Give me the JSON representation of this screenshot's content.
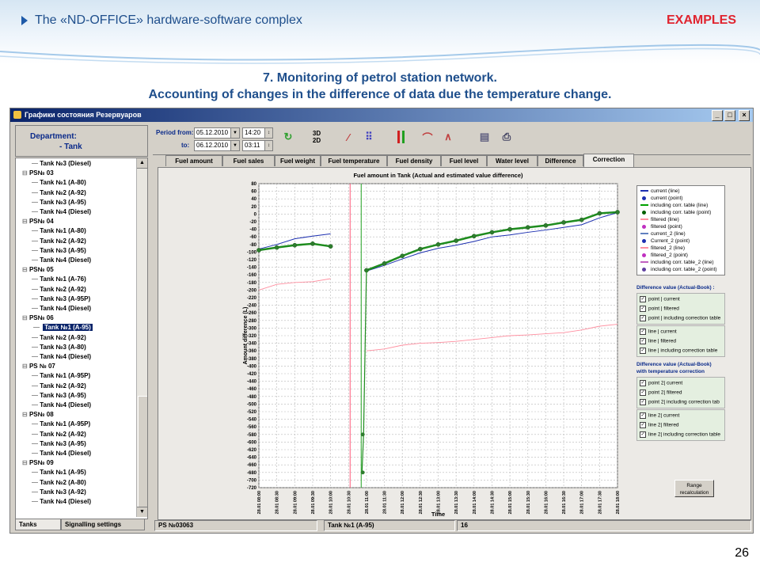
{
  "header": {
    "title": "The «ND-OFFICE» hardware-software complex",
    "examples": "EXAMPLES",
    "slide_title_1": "7. Monitoring of petrol station network.",
    "slide_title_2": "Accounting of changes in the difference of data due the temperature change.",
    "page_number": "26",
    "accent": "#e0242f",
    "brand": "#1f4f8c"
  },
  "window": {
    "title": "Графики состояния Резервуаров",
    "buttons": [
      "_",
      "□",
      "×"
    ]
  },
  "department": {
    "label": "Department:",
    "tank": "- Tank"
  },
  "tree": [
    {
      "type": "tank",
      "label": "Tank №3 (Diesel)"
    },
    {
      "type": "ps",
      "label": "PS№ 03"
    },
    {
      "type": "tank",
      "label": "Tank №1 (A-80)"
    },
    {
      "type": "tank",
      "label": "Tank №2 (A-92)"
    },
    {
      "type": "tank",
      "label": "Tank №3 (A-95)"
    },
    {
      "type": "tank",
      "label": "Tank №4 (Diesel)"
    },
    {
      "type": "ps",
      "label": "PS№ 04"
    },
    {
      "type": "tank",
      "label": "Tank №1 (A-80)"
    },
    {
      "type": "tank",
      "label": "Tank №2 (A-92)"
    },
    {
      "type": "tank",
      "label": "Tank №3 (A-95)"
    },
    {
      "type": "tank",
      "label": "Tank №4 (Diesel)"
    },
    {
      "type": "ps",
      "label": "PS№ 05"
    },
    {
      "type": "tank",
      "label": "Tank №1 (A-76)"
    },
    {
      "type": "tank",
      "label": "Tank №2 (A-92)"
    },
    {
      "type": "tank",
      "label": "Tank №3 (A-95P)"
    },
    {
      "type": "tank",
      "label": "Tank №4 (Diesel)"
    },
    {
      "type": "ps",
      "label": "PS№ 06"
    },
    {
      "type": "tank",
      "label": "Tank №1 (A-95)",
      "selected": true
    },
    {
      "type": "tank",
      "label": "Tank №2 (A-92)"
    },
    {
      "type": "tank",
      "label": "Tank №3 (A-80)"
    },
    {
      "type": "tank",
      "label": "Tank №4 (Diesel)"
    },
    {
      "type": "ps",
      "label": "PS № 07"
    },
    {
      "type": "tank",
      "label": "Tank №1 (A-95P)"
    },
    {
      "type": "tank",
      "label": "Tank №2 (A-92)"
    },
    {
      "type": "tank",
      "label": "Tank №3 (A-95)"
    },
    {
      "type": "tank",
      "label": "Tank №4 (Diesel)"
    },
    {
      "type": "ps",
      "label": "PS№ 08"
    },
    {
      "type": "tank",
      "label": "Tank №1 (A-95P)"
    },
    {
      "type": "tank",
      "label": "Tank №2 (A-92)"
    },
    {
      "type": "tank",
      "label": "Tank №3 (A-95)"
    },
    {
      "type": "tank",
      "label": "Tank №4 (Diesel)"
    },
    {
      "type": "ps",
      "label": "PS№ 09"
    },
    {
      "type": "tank",
      "label": "Tank №1 (A-95)"
    },
    {
      "type": "tank",
      "label": "Tank №2 (A-80)"
    },
    {
      "type": "tank",
      "label": "Tank №3 (A-92)"
    },
    {
      "type": "tank",
      "label": "Tank №4 (Diesel)"
    }
  ],
  "left_tabs": {
    "tanks": "Tanks",
    "signalling": "Signalling settings"
  },
  "toolbar": {
    "period_from_label": "Period from:",
    "period_from_date": "05.12.2010",
    "period_from_time": "14:20",
    "to_label": "to:",
    "to_date": "06.12.2010",
    "to_time": "03:11",
    "toggle_3d": "3D/2D"
  },
  "tabs": [
    "Fuel amount",
    "Fuel sales",
    "Fuel weight",
    "Fuel temperature",
    "Fuel density",
    "Fuel level",
    "Water level",
    "Difference",
    "Correction"
  ],
  "active_tab": "Correction",
  "legend": [
    {
      "label": "current (line)",
      "color": "#1c2fb0",
      "kind": "line"
    },
    {
      "label": "current (point)",
      "color": "#1c2fb0",
      "kind": "point"
    },
    {
      "label": "including corr. table (line)",
      "color": "#00a000",
      "kind": "line"
    },
    {
      "label": "including corr. table (point)",
      "color": "#006000",
      "kind": "point"
    },
    {
      "label": "filtered (line)",
      "color": "#ff8fa0",
      "kind": "line"
    },
    {
      "label": "filtered (point)",
      "color": "#c030c0",
      "kind": "point"
    },
    {
      "label": "current_2 (line)",
      "color": "#6080c0",
      "kind": "line"
    },
    {
      "label": "Current_2 (point)",
      "color": "#1c2fb0",
      "kind": "point"
    },
    {
      "label": "filtered_2 (line)",
      "color": "#ff8fa0",
      "kind": "line"
    },
    {
      "label": "filtered_2 (point)",
      "color": "#c030c0",
      "kind": "point"
    },
    {
      "label": "including corr. table_2 (line)",
      "color": "#c060c0",
      "kind": "line"
    },
    {
      "label": "including corr. table_2 (point)",
      "color": "#6040a0",
      "kind": "point"
    }
  ],
  "diff_panel": {
    "title_1": "Difference value (Actual-Book) :",
    "group_1a": [
      "point | current",
      "point | filtered",
      "point | including correction table"
    ],
    "group_1b": [
      "line | current",
      "line | filtered",
      "line | including correction table"
    ],
    "title_2a": "Difference value (Actual-Book)",
    "title_2b": "with temperature correction",
    "group_2a": [
      "point 2| current",
      "point 2| filtered",
      "point 2| including correction tab"
    ],
    "group_2b": [
      "line 2| current",
      "line 2| filtered",
      "line 2| including correction table"
    ],
    "range_button_1": "Range",
    "range_button_2": "recalculation"
  },
  "status": {
    "ps": "PS №03063",
    "tank": "Tank №1 (A-95)",
    "value": "16"
  },
  "chart_data": {
    "type": "line",
    "title": "Fuel amount in Tank (Actual and estimated value difference)",
    "xlabel": "Time",
    "ylabel": "Amount difference (L)",
    "ylim": [
      -720,
      80
    ],
    "yticks": [
      80,
      60,
      40,
      20,
      0,
      -20,
      -40,
      -60,
      -80,
      -100,
      -120,
      -140,
      -160,
      -180,
      -200,
      -220,
      -240,
      -260,
      -280,
      -300,
      -320,
      -340,
      -360,
      -380,
      -400,
      -420,
      -440,
      -460,
      -480,
      -500,
      -520,
      -540,
      -560,
      -580,
      -600,
      -620,
      -640,
      -660,
      -680,
      -700,
      -720
    ],
    "categories": [
      "28.01 08:00",
      "28.01 08:30",
      "28.01 09:00",
      "28.01 09:30",
      "28.01 10:00",
      "28.01 10:30",
      "28.01 11:00",
      "28.01 11:30",
      "28.01 12:00",
      "28.01 12:30",
      "28.01 13:00",
      "28.01 13:30",
      "28.01 14:00",
      "28.01 14:30",
      "28.01 15:00",
      "28.01 15:30",
      "28.01 16:00",
      "28.01 16:30",
      "28.01 17:00",
      "28.01 17:30",
      "28.01 18:00"
    ],
    "grid": true,
    "legend_position": "top-right",
    "series": [
      {
        "name": "current (line)",
        "color": "#1c2fb0",
        "values": [
          -92,
          -80,
          -65,
          -58,
          -52,
          null,
          -150,
          -135,
          -118,
          -102,
          -90,
          -82,
          -72,
          -60,
          -55,
          -48,
          -42,
          -35,
          -28,
          -10,
          4
        ]
      },
      {
        "name": "including corr. table (point)",
        "color": "#1e8c1e",
        "values": [
          -95,
          -88,
          -82,
          -78,
          -85,
          null,
          -148,
          -130,
          -110,
          -92,
          -80,
          -70,
          -58,
          -48,
          -40,
          -35,
          -30,
          -22,
          -15,
          2,
          5
        ]
      },
      {
        "name": "filtered (line)",
        "color": "#ff8fa0",
        "values": [
          -200,
          -185,
          -180,
          -178,
          -170,
          null,
          -360,
          -355,
          -345,
          -340,
          -338,
          -335,
          -330,
          -325,
          -320,
          -318,
          -315,
          -312,
          -305,
          -295,
          -290
        ]
      }
    ],
    "drop_points": [
      -580,
      -680
    ],
    "markers": {
      "red_vline_at": "28.01 10:30",
      "green_vline_at": "28.01 10:45"
    }
  }
}
